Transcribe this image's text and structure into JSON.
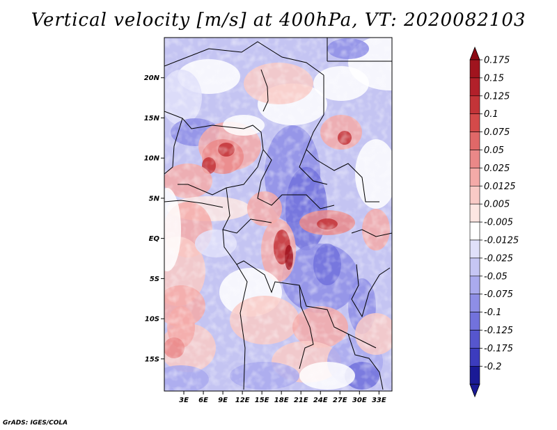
{
  "title": "Vertical velocity [m/s] at 400hPa, VT: 2020082103",
  "footer": "GrADS: IGES/COLA",
  "map": {
    "lon_range": [
      0,
      35
    ],
    "lat_range": [
      -19,
      25
    ],
    "lat_ticks": [
      {
        "value": 20,
        "label": "20N"
      },
      {
        "value": 15,
        "label": "15N"
      },
      {
        "value": 10,
        "label": "10N"
      },
      {
        "value": 5,
        "label": "5N"
      },
      {
        "value": 0,
        "label": "EQ"
      },
      {
        "value": -5,
        "label": "5S"
      },
      {
        "value": -10,
        "label": "10S"
      },
      {
        "value": -15,
        "label": "15S"
      }
    ],
    "lon_ticks": [
      {
        "value": 3,
        "label": "3E"
      },
      {
        "value": 6,
        "label": "6E"
      },
      {
        "value": 9,
        "label": "9E"
      },
      {
        "value": 12,
        "label": "12E"
      },
      {
        "value": 15,
        "label": "15E"
      },
      {
        "value": 18,
        "label": "18E"
      },
      {
        "value": 21,
        "label": "21E"
      },
      {
        "value": 24,
        "label": "24E"
      },
      {
        "value": 27,
        "label": "27E"
      },
      {
        "value": 30,
        "label": "30E"
      },
      {
        "value": 33,
        "label": "33E"
      }
    ]
  },
  "colorbar": {
    "levels": [
      {
        "label": "0.175",
        "color": "#a0141e"
      },
      {
        "label": "0.15",
        "color": "#b2202a"
      },
      {
        "label": "0.125",
        "color": "#c33438"
      },
      {
        "label": "0.1",
        "color": "#d44a4a"
      },
      {
        "label": "0.075",
        "color": "#e06868"
      },
      {
        "label": "0.05",
        "color": "#ea8888"
      },
      {
        "label": "0.025",
        "color": "#f4aaa8"
      },
      {
        "label": "0.0125",
        "color": "#f9cac6"
      },
      {
        "label": "0.005",
        "color": "#fde6e2"
      },
      {
        "label": "-0.005",
        "color": "#ffffff"
      },
      {
        "label": "-0.0125",
        "color": "#e0e0fa"
      },
      {
        "label": "-0.025",
        "color": "#c6c6f4"
      },
      {
        "label": "-0.05",
        "color": "#aaaaee"
      },
      {
        "label": "-0.075",
        "color": "#8e8ee6"
      },
      {
        "label": "-0.1",
        "color": "#7272dc"
      },
      {
        "label": "-0.125",
        "color": "#5656ce"
      },
      {
        "label": "-0.175",
        "color": "#3c3cbe"
      },
      {
        "label": "-0.2",
        "color": "#2626aa"
      }
    ],
    "top_extension_color": "#8c0a14",
    "bottom_extension_color": "#1a1a96",
    "extra_bottom_color": "#1a1a96"
  }
}
